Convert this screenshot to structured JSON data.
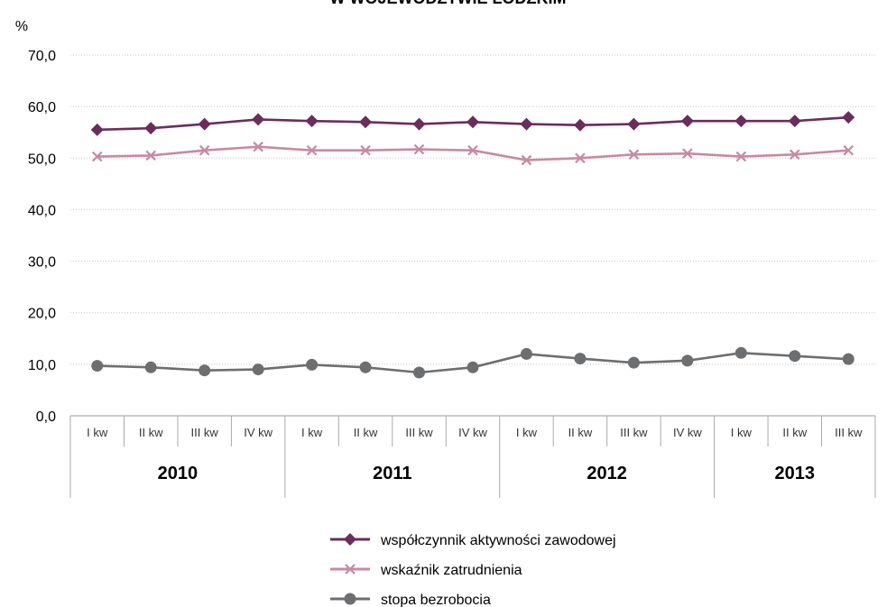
{
  "chart_data": {
    "type": "line",
    "title": "W WOJEWÓDZTWIE ŁÓDZKIM",
    "ylabel": "%",
    "ylim": [
      0,
      70
    ],
    "yticks": [
      "0,0",
      "10,0",
      "20,0",
      "30,0",
      "40,0",
      "50,0",
      "60,0",
      "70,0"
    ],
    "grid": true,
    "categories": [
      "I kw",
      "II kw",
      "III kw",
      "IV kw",
      "I kw",
      "II kw",
      "III kw",
      "IV kw",
      "I kw",
      "II kw",
      "III kw",
      "IV kw",
      "I kw",
      "II kw",
      "III kw"
    ],
    "groups": [
      {
        "label": "2010",
        "count": 4
      },
      {
        "label": "2011",
        "count": 4
      },
      {
        "label": "2012",
        "count": 4
      },
      {
        "label": "2013",
        "count": 3
      }
    ],
    "series": [
      {
        "name": "współczynnik aktywności zawodowej",
        "color": "#6b2d5c",
        "marker": "diamond",
        "values": [
          55.5,
          55.8,
          56.6,
          57.5,
          57.2,
          57.0,
          56.6,
          57.0,
          56.6,
          56.4,
          56.6,
          57.2,
          57.2,
          57.2,
          57.9
        ]
      },
      {
        "name": "wskaźnik zatrudnienia",
        "color": "#c78aa3",
        "marker": "x",
        "values": [
          50.3,
          50.5,
          51.5,
          52.2,
          51.5,
          51.5,
          51.7,
          51.5,
          49.6,
          50.0,
          50.7,
          50.9,
          50.3,
          50.7,
          51.5
        ]
      },
      {
        "name": "stopa bezrobocia",
        "color": "#6d6e70",
        "marker": "circle",
        "values": [
          9.7,
          9.4,
          8.8,
          9.0,
          9.9,
          9.4,
          8.4,
          9.4,
          12.0,
          11.1,
          10.3,
          10.7,
          12.2,
          11.6,
          11.0
        ]
      }
    ],
    "legend_position": "bottom-center"
  }
}
